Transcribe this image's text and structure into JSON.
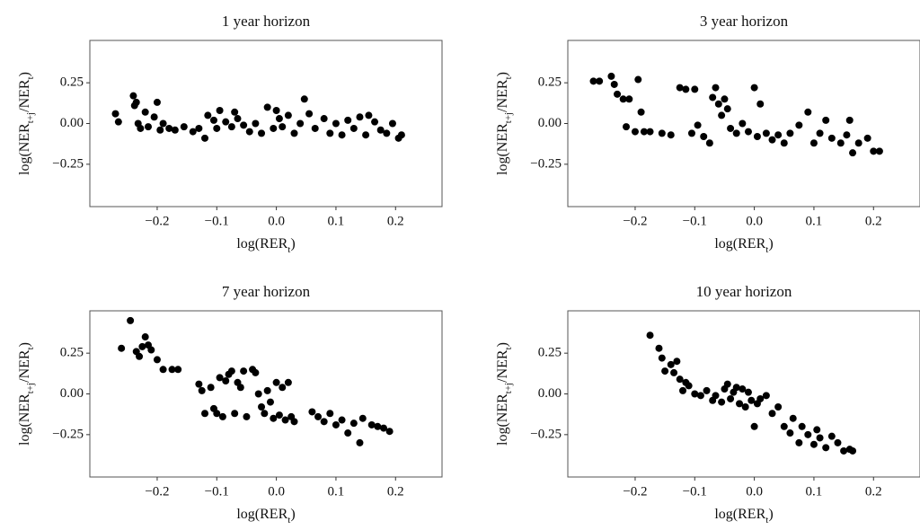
{
  "chart_data": [
    {
      "type": "scatter",
      "title": "1 year horizon",
      "xlabel": [
        "log(RER",
        "t",
        ")"
      ],
      "ylabel": [
        "log(NER",
        "t+j",
        "/NER",
        "t",
        ")"
      ],
      "color": "#000000",
      "xlim": [
        -0.313,
        0.278
      ],
      "ylim": [
        -0.51,
        0.51
      ],
      "xticks": [
        {
          "value": -0.2,
          "label": "−0.2"
        },
        {
          "value": -0.1,
          "label": "−0.1"
        },
        {
          "value": 0,
          "label": "0.0"
        },
        0.1,
        0.2
      ],
      "yticks": [
        {
          "value": -0.25,
          "label": "−0.25"
        },
        {
          "value": 0,
          "label": "0.00"
        },
        0.25
      ],
      "x": [
        -0.27,
        -0.265,
        -0.24,
        -0.238,
        -0.235,
        -0.232,
        -0.228,
        -0.22,
        -0.215,
        -0.205,
        -0.2,
        -0.195,
        -0.19,
        -0.18,
        -0.17,
        -0.155,
        -0.14,
        -0.13,
        -0.12,
        -0.115,
        -0.105,
        -0.1,
        -0.095,
        -0.085,
        -0.075,
        -0.07,
        -0.065,
        -0.055,
        -0.045,
        -0.035,
        -0.025,
        -0.015,
        -0.005,
        0.0,
        0.005,
        0.01,
        0.02,
        0.03,
        0.04,
        0.047,
        0.055,
        0.065,
        0.08,
        0.09,
        0.1,
        0.11,
        0.12,
        0.13,
        0.14,
        0.15,
        0.155,
        0.165,
        0.175,
        0.185,
        0.195,
        0.205,
        0.21
      ],
      "values": [
        0.06,
        0.01,
        0.17,
        0.11,
        0.13,
        0.0,
        -0.03,
        0.07,
        -0.02,
        0.04,
        0.13,
        -0.04,
        0.0,
        -0.03,
        -0.04,
        -0.02,
        -0.05,
        -0.03,
        -0.09,
        0.05,
        0.02,
        -0.03,
        0.08,
        0.01,
        -0.02,
        0.07,
        0.03,
        -0.01,
        -0.05,
        0.0,
        -0.06,
        0.1,
        -0.03,
        0.08,
        0.03,
        -0.02,
        0.05,
        -0.06,
        0.0,
        0.15,
        0.06,
        -0.03,
        0.03,
        -0.06,
        0.0,
        -0.07,
        0.02,
        -0.03,
        0.04,
        -0.07,
        0.05,
        0.01,
        -0.04,
        -0.06,
        0.0,
        -0.09,
        -0.07
      ]
    },
    {
      "type": "scatter",
      "title": "3 year horizon",
      "xlabel": [
        "log(RER",
        "t",
        ")"
      ],
      "ylabel": [
        "log(NER",
        "t+j",
        "/NER",
        "t",
        ")"
      ],
      "color": "#000000",
      "xlim": [
        -0.313,
        0.278
      ],
      "ylim": [
        -0.51,
        0.51
      ],
      "xticks": [
        {
          "value": -0.2,
          "label": "−0.2"
        },
        {
          "value": -0.1,
          "label": "−0.1"
        },
        {
          "value": 0,
          "label": "0.0"
        },
        0.1,
        0.2
      ],
      "yticks": [
        {
          "value": -0.25,
          "label": "−0.25"
        },
        {
          "value": 0,
          "label": "0.00"
        },
        0.25
      ],
      "x": [
        -0.27,
        -0.26,
        -0.24,
        -0.235,
        -0.23,
        -0.22,
        -0.215,
        -0.21,
        -0.2,
        -0.195,
        -0.19,
        -0.185,
        -0.175,
        -0.155,
        -0.14,
        -0.125,
        -0.115,
        -0.105,
        -0.1,
        -0.095,
        -0.085,
        -0.075,
        -0.07,
        -0.065,
        -0.06,
        -0.055,
        -0.05,
        -0.045,
        -0.04,
        -0.03,
        -0.02,
        -0.01,
        0.0,
        0.005,
        0.01,
        0.02,
        0.03,
        0.04,
        0.05,
        0.06,
        0.075,
        0.09,
        0.1,
        0.11,
        0.12,
        0.13,
        0.145,
        0.155,
        0.16,
        0.165,
        0.175,
        0.19,
        0.2,
        0.21
      ],
      "values": [
        0.26,
        0.26,
        0.29,
        0.24,
        0.18,
        0.15,
        -0.02,
        0.15,
        -0.05,
        0.27,
        0.07,
        -0.05,
        -0.05,
        -0.06,
        -0.07,
        0.22,
        0.21,
        -0.06,
        0.21,
        -0.01,
        -0.08,
        -0.12,
        0.16,
        0.22,
        0.12,
        0.05,
        0.15,
        0.09,
        -0.03,
        -0.06,
        0.0,
        -0.05,
        0.22,
        -0.08,
        0.12,
        -0.06,
        -0.1,
        -0.07,
        -0.12,
        -0.06,
        -0.01,
        0.07,
        -0.12,
        -0.06,
        0.02,
        -0.09,
        -0.12,
        -0.07,
        0.02,
        -0.18,
        -0.12,
        -0.09,
        -0.17,
        -0.17
      ]
    },
    {
      "type": "scatter",
      "title": "7 year horizon",
      "xlabel": [
        "log(RER",
        "t",
        ")"
      ],
      "ylabel": [
        "log(NER",
        "t+j",
        "/NER",
        "t",
        ")"
      ],
      "color": "#000000",
      "xlim": [
        -0.313,
        0.278
      ],
      "ylim": [
        -0.51,
        0.51
      ],
      "xticks": [
        {
          "value": -0.2,
          "label": "−0.2"
        },
        {
          "value": -0.1,
          "label": "−0.1"
        },
        {
          "value": 0,
          "label": "0.0"
        },
        0.1,
        0.2
      ],
      "yticks": [
        {
          "value": -0.25,
          "label": "−0.25"
        },
        {
          "value": 0,
          "label": "0.00"
        },
        0.25
      ],
      "x": [
        -0.26,
        -0.245,
        -0.235,
        -0.23,
        -0.225,
        -0.22,
        -0.215,
        -0.21,
        -0.2,
        -0.19,
        -0.175,
        -0.165,
        -0.13,
        -0.125,
        -0.12,
        -0.11,
        -0.105,
        -0.1,
        -0.095,
        -0.09,
        -0.085,
        -0.08,
        -0.075,
        -0.07,
        -0.065,
        -0.06,
        -0.055,
        -0.05,
        -0.04,
        -0.035,
        -0.03,
        -0.025,
        -0.02,
        -0.015,
        -0.01,
        -0.005,
        0.0,
        0.005,
        0.01,
        0.015,
        0.02,
        0.025,
        0.03,
        0.06,
        0.07,
        0.08,
        0.09,
        0.1,
        0.11,
        0.12,
        0.13,
        0.14,
        0.145,
        0.16,
        0.17,
        0.18,
        0.19
      ],
      "values": [
        0.28,
        0.45,
        0.26,
        0.23,
        0.29,
        0.35,
        0.3,
        0.27,
        0.21,
        0.15,
        0.15,
        0.15,
        0.06,
        0.02,
        -0.12,
        0.04,
        -0.09,
        -0.12,
        0.1,
        -0.14,
        0.08,
        0.12,
        0.14,
        -0.12,
        0.07,
        0.04,
        0.14,
        -0.14,
        0.15,
        0.13,
        0.0,
        -0.08,
        -0.12,
        0.02,
        -0.05,
        -0.15,
        0.07,
        -0.13,
        0.04,
        -0.16,
        0.07,
        -0.14,
        -0.17,
        -0.11,
        -0.14,
        -0.17,
        -0.12,
        -0.19,
        -0.16,
        -0.24,
        -0.18,
        -0.3,
        -0.15,
        -0.19,
        -0.2,
        -0.21,
        -0.23
      ]
    },
    {
      "type": "scatter",
      "title": "10 year horizon",
      "xlabel": [
        "log(RER",
        "t",
        ")"
      ],
      "ylabel": [
        "log(NER",
        "t+j",
        "/NER",
        "t",
        ")"
      ],
      "color": "#000000",
      "xlim": [
        -0.313,
        0.278
      ],
      "ylim": [
        -0.51,
        0.51
      ],
      "xticks": [
        {
          "value": -0.2,
          "label": "−0.2"
        },
        {
          "value": -0.1,
          "label": "−0.1"
        },
        {
          "value": 0,
          "label": "0.0"
        },
        0.1,
        0.2
      ],
      "yticks": [
        {
          "value": -0.25,
          "label": "−0.25"
        },
        {
          "value": 0,
          "label": "0.00"
        },
        0.25
      ],
      "x": [
        -0.175,
        -0.16,
        -0.155,
        -0.15,
        -0.14,
        -0.135,
        -0.13,
        -0.125,
        -0.12,
        -0.115,
        -0.11,
        -0.1,
        -0.09,
        -0.08,
        -0.07,
        -0.065,
        -0.055,
        -0.05,
        -0.045,
        -0.04,
        -0.035,
        -0.03,
        -0.025,
        -0.02,
        -0.015,
        -0.01,
        -0.005,
        0.0,
        0.005,
        0.01,
        0.02,
        0.03,
        0.04,
        0.05,
        0.06,
        0.065,
        0.075,
        0.08,
        0.09,
        0.1,
        0.105,
        0.11,
        0.12,
        0.13,
        0.14,
        0.15,
        0.16,
        0.165
      ],
      "values": [
        0.36,
        0.28,
        0.22,
        0.14,
        0.18,
        0.13,
        0.2,
        0.09,
        0.02,
        0.07,
        0.05,
        0.0,
        -0.01,
        0.02,
        -0.04,
        -0.01,
        -0.05,
        0.03,
        0.06,
        -0.03,
        0.01,
        0.04,
        -0.06,
        0.03,
        -0.08,
        0.01,
        -0.04,
        -0.2,
        -0.06,
        -0.03,
        -0.01,
        -0.12,
        -0.08,
        -0.2,
        -0.24,
        -0.15,
        -0.3,
        -0.2,
        -0.25,
        -0.31,
        -0.22,
        -0.27,
        -0.33,
        -0.26,
        -0.3,
        -0.35,
        -0.34,
        -0.35
      ]
    }
  ]
}
